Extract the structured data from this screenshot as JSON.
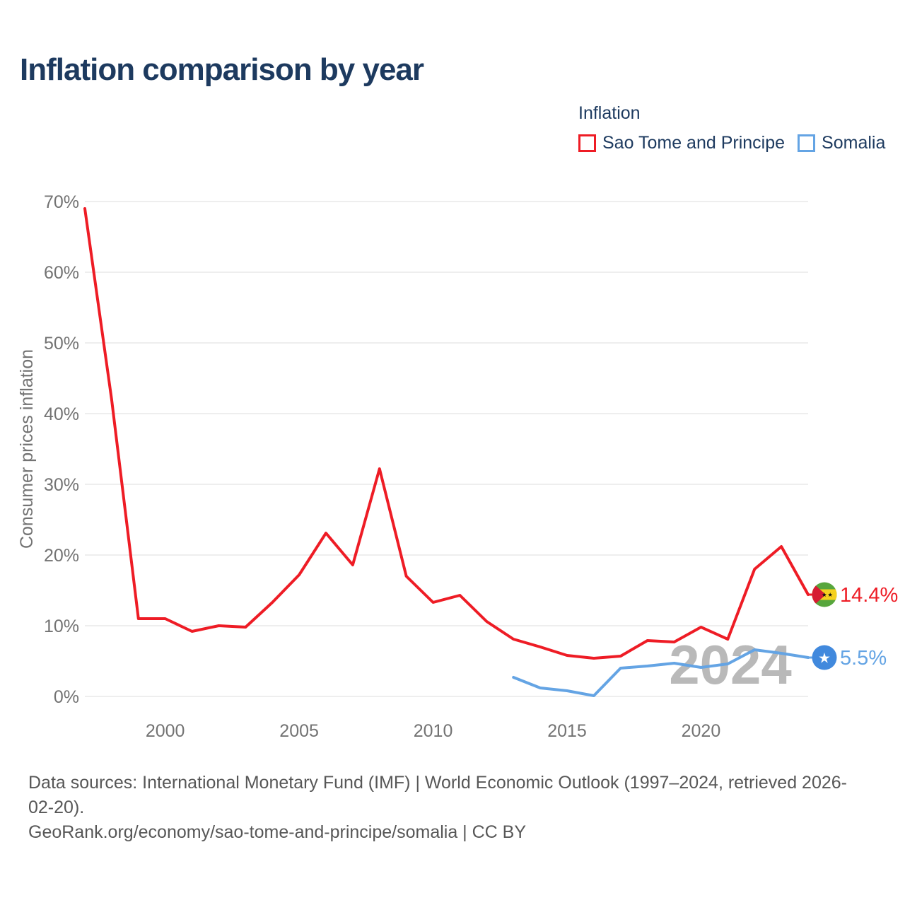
{
  "title": "Inflation comparison by year",
  "legend": {
    "title": "Inflation",
    "items": [
      {
        "label": "Sao Tome and Principe",
        "color": "#ee1c25"
      },
      {
        "label": "Somalia",
        "color": "#64a4e4"
      }
    ]
  },
  "footer": {
    "lines": [
      "Data sources: International Monetary Fund (IMF) | World Economic Outlook (1997–2024, retrieved 2026-",
      "02-20).",
      "GeoRank.org/economy/sao-tome-and-principe/somalia | CC BY"
    ]
  },
  "chart_data": {
    "type": "line",
    "title": "Inflation comparison by year",
    "xlabel": "",
    "ylabel": "Consumer prices inflation",
    "xlim": [
      1997,
      2024
    ],
    "ylim": [
      0,
      70
    ],
    "x_ticks": [
      2000,
      2005,
      2010,
      2015,
      2020
    ],
    "y_ticks": [
      "0%",
      "10%",
      "20%",
      "30%",
      "40%",
      "50%",
      "60%",
      "70%"
    ],
    "grid": true,
    "legend_position": "top-right",
    "watermark": "2024",
    "series": [
      {
        "name": "Sao Tome and Principe",
        "color": "#ee1c25",
        "end_label": "14.4%",
        "x": [
          1997,
          1998,
          1999,
          2000,
          2001,
          2002,
          2003,
          2004,
          2005,
          2006,
          2007,
          2008,
          2009,
          2010,
          2011,
          2012,
          2013,
          2014,
          2015,
          2016,
          2017,
          2018,
          2019,
          2020,
          2021,
          2022,
          2023,
          2024
        ],
        "values": [
          69.0,
          42.0,
          11.0,
          11.0,
          9.2,
          10.0,
          9.8,
          13.3,
          17.2,
          23.1,
          18.6,
          32.2,
          17.0,
          13.3,
          14.3,
          10.6,
          8.1,
          7.0,
          5.8,
          5.4,
          5.7,
          7.9,
          7.7,
          9.8,
          8.1,
          18.0,
          21.2,
          14.4
        ]
      },
      {
        "name": "Somalia",
        "color": "#64a4e4",
        "end_label": "5.5%",
        "x": [
          2013,
          2014,
          2015,
          2016,
          2017,
          2018,
          2019,
          2020,
          2021,
          2022,
          2023,
          2024
        ],
        "values": [
          2.7,
          1.2,
          0.8,
          0.1,
          4.0,
          4.3,
          4.7,
          4.1,
          4.6,
          6.6,
          6.1,
          5.5
        ]
      }
    ]
  }
}
